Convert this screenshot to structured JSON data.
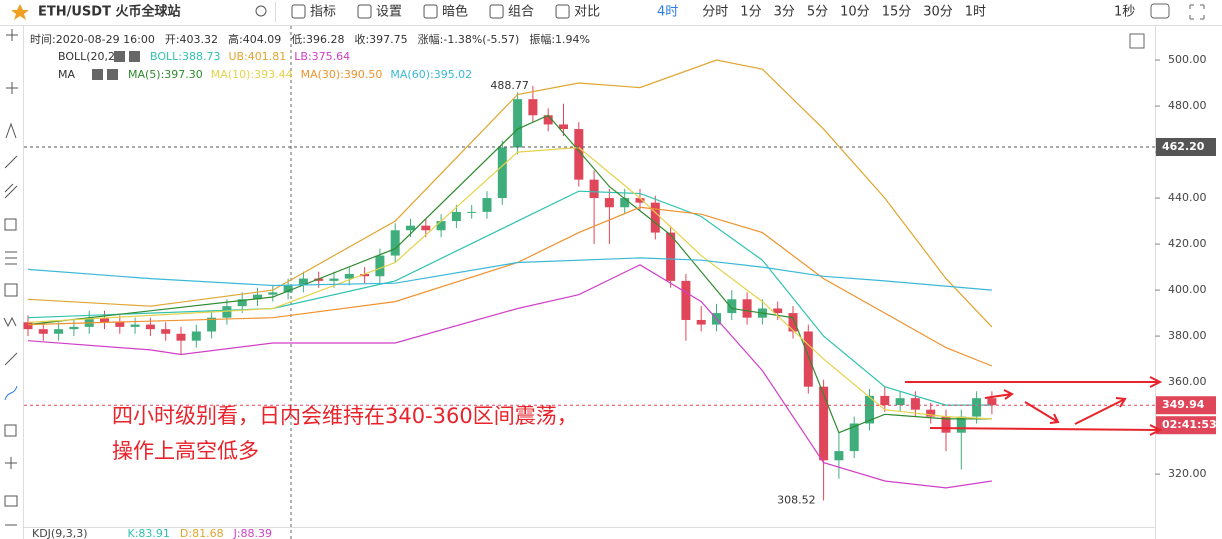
{
  "toolbar": {
    "symbol": "ETH/USDT 火币全球站",
    "buttons": [
      "指标",
      "设置",
      "暗色",
      "组合",
      "对比"
    ],
    "intervals": [
      "4时",
      "分时",
      "1分",
      "3分",
      "5分",
      "10分",
      "15分",
      "30分",
      "1时"
    ],
    "speed": "1秒"
  },
  "info": [
    "时间:2020-08-29 16:00",
    "开:403.32",
    "高:404.09",
    "低:396.28",
    "收:397.75",
    "涨幅:-1.38%(-5.57)",
    "振幅:1.94%"
  ],
  "legend_rows": {
    "boll": "BOLL(20,2)",
    "ma": "MA"
  },
  "kdj": [
    "KDJ(9,3,3)",
    "K:83.91",
    "D:81.68",
    "J:88.39"
  ],
  "chart_data": {
    "type": "candlestick",
    "annotation": [
      "四小时级别看，日内会维持在340-360区间震荡，",
      "操作上高空低多"
    ],
    "max_label": "488.77",
    "min_label": "308.52",
    "ylim": [
      297,
      514.8
    ],
    "yticks": [
      {
        "value": 320,
        "label": "320.00"
      },
      {
        "value": 360,
        "label": "360.00"
      },
      {
        "value": 380,
        "label": "380.00"
      },
      {
        "value": 400,
        "label": "400.00"
      },
      {
        "value": 420,
        "label": "420.00"
      },
      {
        "value": 440,
        "label": "440.00"
      },
      {
        "value": 460,
        "label": "460.00"
      },
      {
        "value": 480,
        "label": "480.00"
      },
      {
        "value": 500,
        "label": "500.00"
      }
    ],
    "up_color": "#3fae7c",
    "down_color": "#e0465a",
    "open": [
      386,
      383,
      381,
      383,
      384,
      388,
      386,
      384,
      385,
      383,
      381,
      378,
      382,
      388,
      393,
      396,
      398,
      399,
      402,
      405,
      404,
      405,
      407,
      406,
      415,
      426,
      428,
      426,
      430,
      434,
      434,
      440,
      462,
      483,
      476,
      472,
      470,
      448,
      440,
      436,
      440,
      438,
      425,
      404,
      387,
      385,
      390,
      396,
      388,
      392,
      390,
      382,
      358,
      326,
      330,
      342,
      354,
      350,
      353,
      348,
      345,
      338,
      345,
      353
    ],
    "high": [
      389,
      386,
      386,
      387,
      391,
      391,
      389,
      388,
      388,
      386,
      384,
      385,
      391,
      396,
      399,
      401,
      402,
      405,
      408,
      408,
      408,
      410,
      410,
      418,
      429,
      431,
      431,
      433,
      437,
      437,
      443,
      465,
      486,
      488.77,
      479,
      481,
      473,
      452,
      444,
      444,
      444,
      441,
      428,
      407,
      393,
      394,
      400,
      399,
      396,
      395,
      393,
      385,
      361,
      338,
      345,
      357,
      358,
      356,
      356,
      351,
      348,
      348,
      356,
      356
    ],
    "low": [
      380,
      378,
      378,
      380,
      381,
      383,
      381,
      381,
      380,
      378,
      372,
      375,
      379,
      385,
      390,
      393,
      395,
      396,
      399,
      401,
      401,
      402,
      403,
      403,
      412,
      423,
      423,
      423,
      427,
      431,
      431,
      437,
      459,
      473,
      469,
      467,
      445,
      420,
      420,
      433,
      435,
      422,
      401,
      378,
      382,
      382,
      387,
      385,
      385,
      387,
      379,
      355,
      308.52,
      318,
      327,
      339,
      347,
      347,
      345,
      342,
      330,
      322,
      342,
      346
    ],
    "close": [
      383,
      381,
      383,
      384,
      388,
      386,
      384,
      385,
      383,
      381,
      378,
      382,
      388,
      393,
      396,
      398,
      399,
      402,
      405,
      404,
      405,
      407,
      406,
      415,
      426,
      428,
      426,
      430,
      434,
      434,
      440,
      462,
      483,
      476,
      472,
      470,
      448,
      440,
      436,
      440,
      438,
      425,
      404,
      387,
      385,
      390,
      396,
      388,
      392,
      390,
      382,
      358,
      326,
      330,
      342,
      354,
      350,
      353,
      348,
      345,
      338,
      345,
      353,
      349.94
    ],
    "overlays": [
      {
        "name": "BOLL:388.73",
        "color": "#2fc2b0",
        "x": [
          0,
          16,
          24,
          32,
          36,
          40,
          44,
          48,
          52,
          56,
          60,
          63
        ],
        "values": [
          388,
          392,
          404,
          430,
          443,
          442,
          432,
          413,
          380,
          358,
          350,
          350
        ]
      },
      {
        "name": "UB:401.81",
        "color": "#e0a530",
        "x": [
          0,
          8,
          16,
          24,
          32,
          36,
          40,
          45,
          48,
          52,
          56,
          60,
          63
        ],
        "values": [
          396,
          393,
          400,
          430,
          485,
          490,
          488,
          500,
          496,
          470,
          440,
          405,
          384
        ]
      },
      {
        "name": "LB:375.64",
        "color": "#d03fc8",
        "x": [
          0,
          8,
          10,
          16,
          24,
          32,
          36,
          40,
          44,
          48,
          52,
          56,
          60,
          63
        ],
        "values": [
          378,
          374,
          372,
          377,
          377,
          392,
          398,
          411,
          395,
          365,
          325,
          317,
          314,
          317
        ]
      },
      {
        "name": "MA(5):397.30",
        "color": "#2e8b2e",
        "x": [
          0,
          16,
          24,
          32,
          34,
          38,
          42,
          46,
          50,
          53,
          56,
          60,
          63
        ],
        "values": [
          385,
          397,
          418,
          470,
          476,
          445,
          424,
          392,
          388,
          338,
          346,
          344,
          344
        ]
      },
      {
        "name": "MA(10):393.44",
        "color": "#e6d24a",
        "x": [
          0,
          16,
          24,
          32,
          36,
          40,
          44,
          48,
          52,
          56,
          60,
          63
        ],
        "values": [
          386,
          392,
          412,
          460,
          462,
          440,
          415,
          395,
          370,
          348,
          345,
          344
        ]
      },
      {
        "name": "MA(30):390.50",
        "color": "#f0922e",
        "x": [
          0,
          16,
          24,
          32,
          36,
          40,
          44,
          48,
          52,
          56,
          60,
          63
        ],
        "values": [
          385,
          388,
          395,
          412,
          425,
          436,
          433,
          425,
          405,
          390,
          375,
          367
        ]
      },
      {
        "name": "MA(60):395.02",
        "color": "#3bb8d8",
        "x": [
          0,
          8,
          16,
          24,
          32,
          40,
          44,
          48,
          52,
          56,
          63
        ],
        "values": [
          409,
          405,
          402,
          403,
          412,
          414,
          413,
          410,
          406,
          404,
          400
        ]
      }
    ],
    "price_tags": [
      {
        "value": 462.2,
        "label": "462.20",
        "color": "#555555"
      },
      {
        "value": 349.94,
        "label": "349.94",
        "color": "#e0465a"
      }
    ],
    "countdown": "02:41:53"
  }
}
